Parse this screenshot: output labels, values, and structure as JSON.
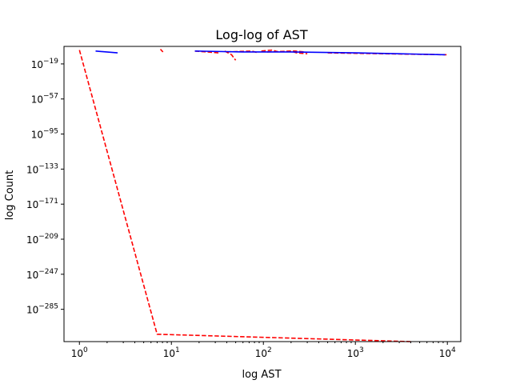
{
  "chart_data": {
    "type": "line",
    "title": "Log-log of AST",
    "xlabel": "log AST",
    "ylabel": "log Count",
    "xscale": "log",
    "yscale": "log",
    "xlim": [
      0.68,
      14000
    ],
    "ylim_exponent": [
      -320,
      0
    ],
    "grid": false,
    "x_ticks": [
      {
        "base": "10",
        "exp": "0",
        "value": 1
      },
      {
        "base": "10",
        "exp": "1",
        "value": 10
      },
      {
        "base": "10",
        "exp": "2",
        "value": 100
      },
      {
        "base": "10",
        "exp": "3",
        "value": 1000
      },
      {
        "base": "10",
        "exp": "4",
        "value": 10000
      }
    ],
    "y_ticks": [
      {
        "base": "10",
        "exp": "−19",
        "value": -19
      },
      {
        "base": "10",
        "exp": "−57",
        "value": -57
      },
      {
        "base": "10",
        "exp": "−95",
        "value": -95
      },
      {
        "base": "10",
        "exp": "−133",
        "value": -133
      },
      {
        "base": "10",
        "exp": "−171",
        "value": -171
      },
      {
        "base": "10",
        "exp": "−209",
        "value": -209
      },
      {
        "base": "10",
        "exp": "−247",
        "value": -247
      },
      {
        "base": "10",
        "exp": "−285",
        "value": -285
      }
    ],
    "series": [
      {
        "color": "#ff0000",
        "style": "dashed",
        "segments": [
          [
            [
              1.0,
              -4
            ],
            [
              7.0,
              -312
            ],
            [
              4000,
              -320
            ]
          ],
          [
            [
              7.6,
              -3
            ],
            [
              8.1,
              -6
            ]
          ],
          [
            [
              18,
              -5
            ],
            [
              33,
              -7
            ]
          ],
          [
            [
              38,
              -5
            ],
            [
              45,
              -9
            ],
            [
              50,
              -15
            ]
          ],
          [
            [
              40,
              -6
            ],
            [
              75,
              -5
            ],
            [
              88,
              -7
            ]
          ],
          [
            [
              95,
              -5
            ],
            [
              125,
              -4
            ],
            [
              145,
              -6
            ],
            [
              200,
              -5
            ],
            [
              230,
              -7
            ],
            [
              300,
              -8
            ]
          ],
          [
            [
              110,
              -6
            ],
            [
              220,
              -5
            ],
            [
              280,
              -6
            ]
          ],
          [
            [
              500,
              -7
            ],
            [
              2000,
              -8
            ],
            [
              9800,
              -9
            ]
          ]
        ]
      },
      {
        "color": "#0000ff",
        "style": "solid",
        "segments": [
          [
            [
              1.5,
              -5
            ],
            [
              2.6,
              -7
            ]
          ],
          [
            [
              18,
              -5
            ],
            [
              60,
              -6
            ],
            [
              200,
              -6
            ],
            [
              1000,
              -7
            ],
            [
              3000,
              -8
            ],
            [
              9500,
              -9
            ]
          ]
        ]
      }
    ]
  }
}
